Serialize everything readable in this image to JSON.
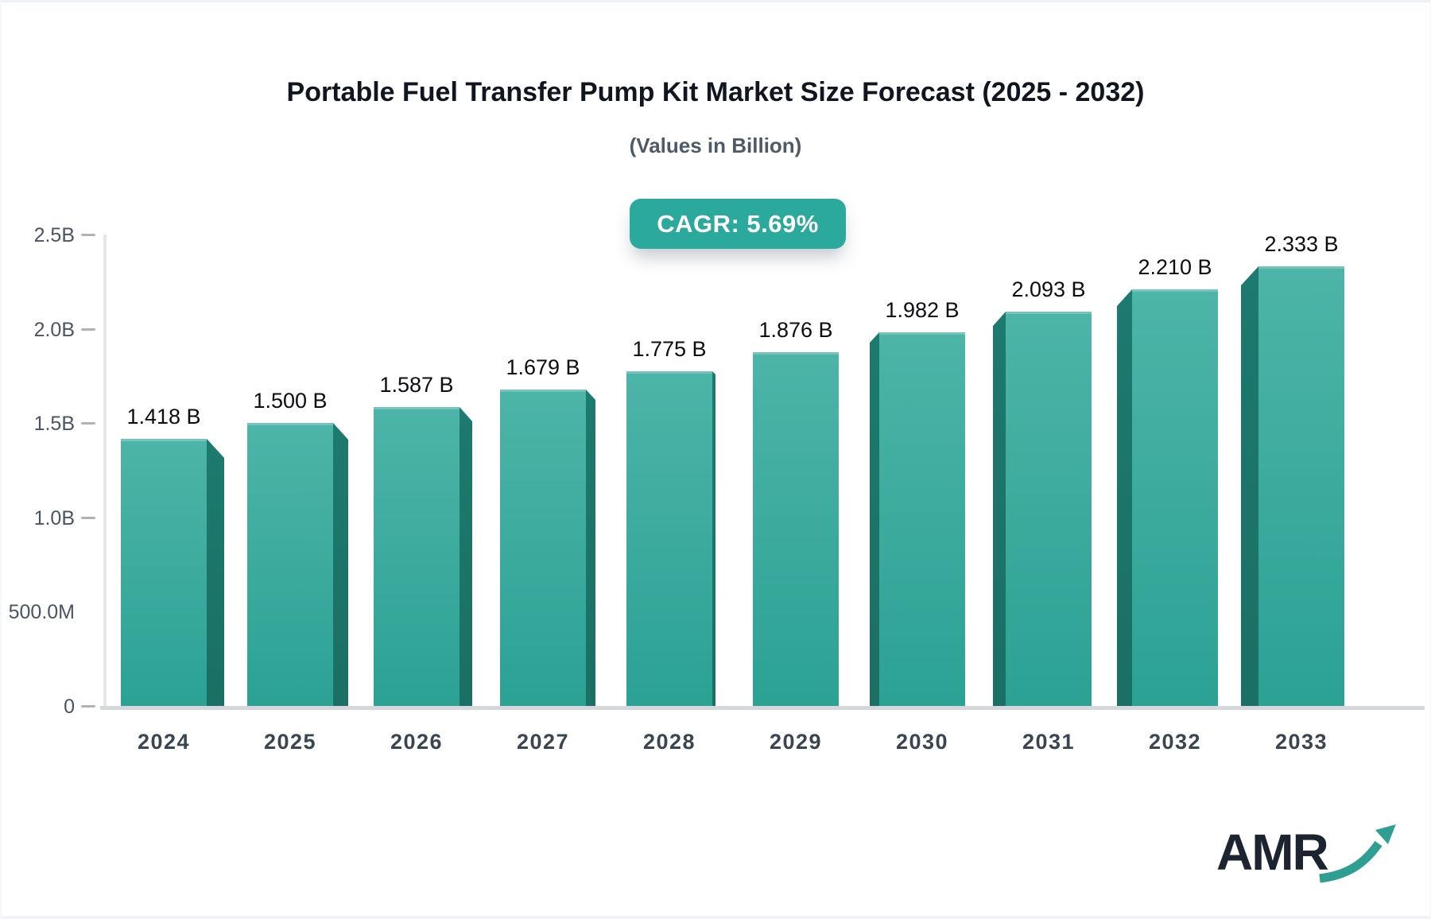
{
  "header": {
    "title": "Portable Fuel Transfer Pump Kit Market Size Forecast (2025 - 2032)",
    "subtitle": "(Values in Billion)",
    "cagr_label": "CAGR: 5.69%"
  },
  "chart_data": {
    "type": "bar",
    "title": "Portable Fuel Transfer Pump Kit Market Size Forecast (2025 - 2032)",
    "subtitle": "(Values in Billion)",
    "xlabel": "",
    "ylabel": "",
    "unit": "Billion USD",
    "categories": [
      "2024",
      "2025",
      "2026",
      "2027",
      "2028",
      "2029",
      "2030",
      "2031",
      "2032",
      "2033"
    ],
    "values": [
      1.418,
      1.5,
      1.587,
      1.679,
      1.775,
      1.876,
      1.982,
      2.093,
      2.21,
      2.333
    ],
    "value_labels": [
      "1.418 B",
      "1.500 B",
      "1.587 B",
      "1.679 B",
      "1.775 B",
      "1.876 B",
      "1.982 B",
      "2.093 B",
      "2.210 B",
      "2.333 B"
    ],
    "ylim": [
      0,
      2.5
    ],
    "yticks": [
      {
        "value": 2.5,
        "label": "2.5B",
        "dash": true
      },
      {
        "value": 2.0,
        "label": "2.0B",
        "dash": true
      },
      {
        "value": 1.5,
        "label": "1.5B",
        "dash": true
      },
      {
        "value": 1.0,
        "label": "1.0B",
        "dash": true
      },
      {
        "value": 0.5,
        "label": "500.0M",
        "dash": false
      },
      {
        "value": 0,
        "label": "0",
        "dash": true
      }
    ],
    "grid": false,
    "legend": false,
    "annotations": [
      "CAGR: 5.69%"
    ]
  },
  "colors": {
    "bar_gradient_top": "#4db4a8",
    "bar_gradient_bottom": "#2ba294",
    "bar_side": "#1d7a6e",
    "badge_background": "#2aa99c",
    "badge_text": "#ffffff",
    "logo_text": "#1b2430",
    "logo_arrow": "#2f9e93"
  },
  "logo": {
    "text": "AMR"
  }
}
